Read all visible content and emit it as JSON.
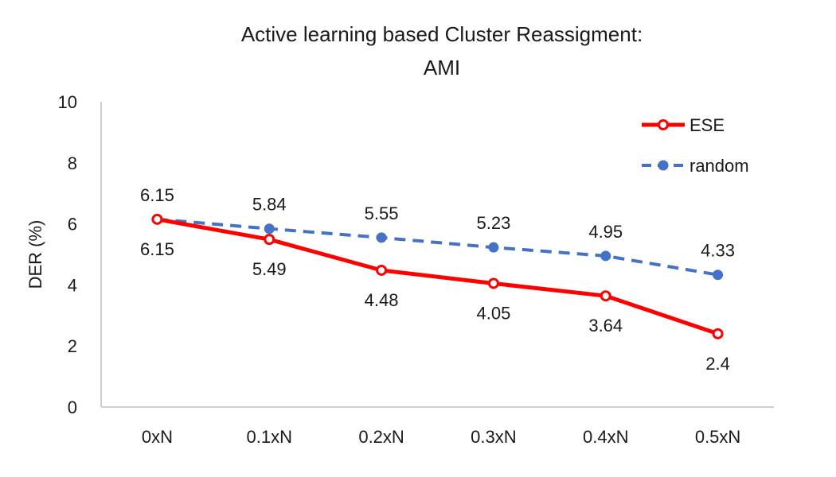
{
  "chart_data": {
    "type": "line",
    "title_line1": "Active learning based Cluster Reassigment:",
    "title_line2": "AMI",
    "xlabel": "",
    "ylabel": "DER (%)",
    "categories": [
      "0xN",
      "0.1xN",
      "0.2xN",
      "0.3xN",
      "0.4xN",
      "0.5xN"
    ],
    "ylim": [
      0,
      10
    ],
    "yticks": [
      0,
      2,
      4,
      6,
      8,
      10
    ],
    "grid": false,
    "legend_position": "top-right",
    "series": [
      {
        "name": "ESE",
        "values": [
          6.15,
          5.49,
          4.48,
          4.05,
          3.64,
          2.4
        ],
        "labels": [
          "6.15",
          "5.49",
          "4.48",
          "4.05",
          "3.64",
          "2.4"
        ],
        "color": "#ff0000",
        "line_style": "solid",
        "marker": "hollow-circle",
        "label_position": "below"
      },
      {
        "name": "random",
        "values": [
          6.15,
          5.84,
          5.55,
          5.23,
          4.95,
          4.33
        ],
        "labels": [
          "6.15",
          "5.84",
          "5.55",
          "5.23",
          "4.95",
          "4.33"
        ],
        "color": "#4472c4",
        "line_style": "dashed",
        "marker": "filled-circle",
        "label_position": "above"
      }
    ]
  }
}
